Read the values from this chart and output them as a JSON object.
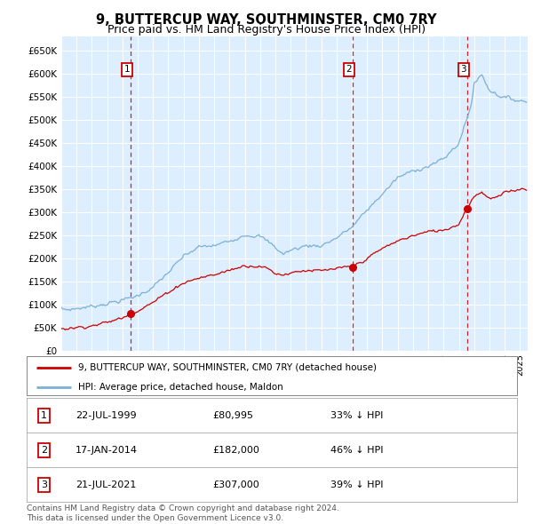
{
  "title": "9, BUTTERCUP WAY, SOUTHMINSTER, CM0 7RY",
  "subtitle": "Price paid vs. HM Land Registry's House Price Index (HPI)",
  "title_fontsize": 10.5,
  "subtitle_fontsize": 9,
  "bg_color": "#ddeeff",
  "fig_bg_color": "#ffffff",
  "ylim": [
    0,
    680000
  ],
  "yticks": [
    0,
    50000,
    100000,
    150000,
    200000,
    250000,
    300000,
    350000,
    400000,
    450000,
    500000,
    550000,
    600000,
    650000
  ],
  "sales": [
    {
      "date_num": 1999.56,
      "price": 80995,
      "label": "1"
    },
    {
      "date_num": 2014.05,
      "price": 182000,
      "label": "2"
    },
    {
      "date_num": 2021.55,
      "price": 307000,
      "label": "3"
    }
  ],
  "sale_color": "#cc0000",
  "hpi_color": "#7ab0d4",
  "legend_entries": [
    "9, BUTTERCUP WAY, SOUTHMINSTER, CM0 7RY (detached house)",
    "HPI: Average price, detached house, Maldon"
  ],
  "table_rows": [
    {
      "num": "1",
      "date": "22-JUL-1999",
      "price": "£80,995",
      "pct": "33% ↓ HPI"
    },
    {
      "num": "2",
      "date": "17-JAN-2014",
      "price": "£182,000",
      "pct": "46% ↓ HPI"
    },
    {
      "num": "3",
      "date": "21-JUL-2021",
      "price": "£307,000",
      "pct": "39% ↓ HPI"
    }
  ],
  "footer": "Contains HM Land Registry data © Crown copyright and database right 2024.\nThis data is licensed under the Open Government Licence v3.0.",
  "xmin": 1995.0,
  "xmax": 2025.5
}
